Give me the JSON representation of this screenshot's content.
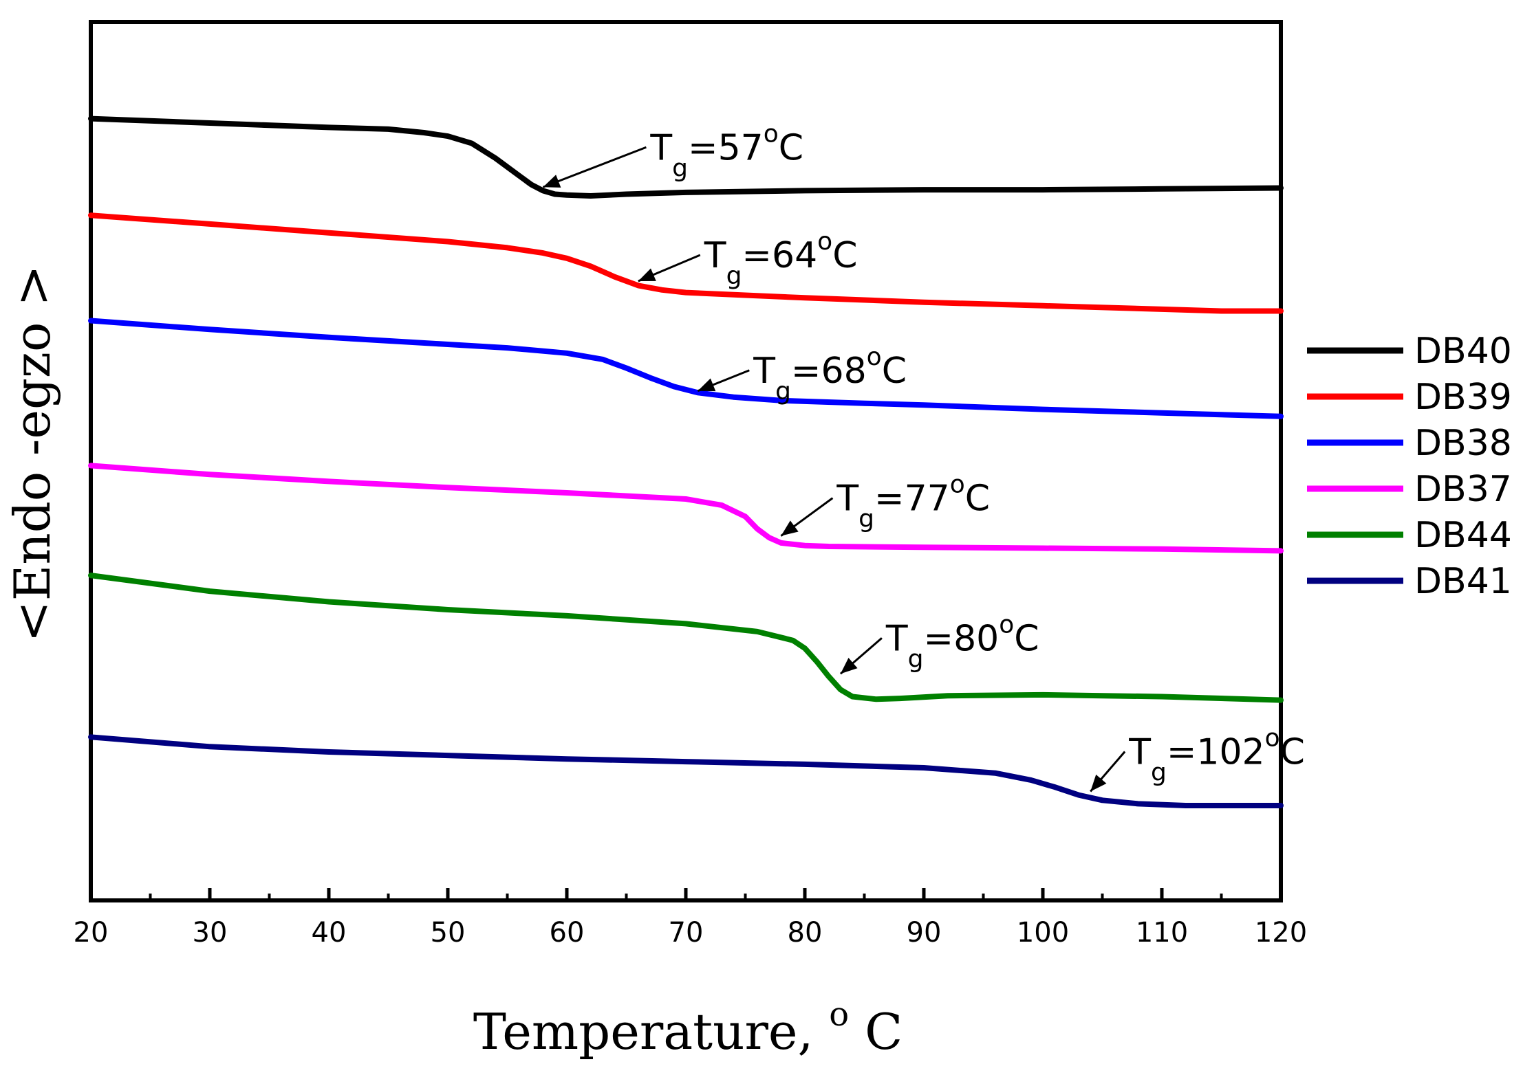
{
  "chart_data": {
    "type": "line",
    "xlabel": "Temperature,",
    "xlabel_unit_sup": "o",
    "xlabel_unit": "C",
    "ylabel": "<Endo -egzo >",
    "xlim": [
      20,
      120
    ],
    "x_ticks": [
      20,
      30,
      40,
      50,
      60,
      70,
      80,
      90,
      100,
      110,
      120
    ],
    "y_ticks_shown": false,
    "legend_position": "right",
    "series": [
      {
        "name": "DB40",
        "color": "#000000",
        "x": [
          20,
          30,
          40,
          45,
          48,
          50,
          52,
          54,
          56,
          57,
          58,
          59,
          60,
          62,
          65,
          70,
          80,
          90,
          100,
          110,
          120
        ],
        "y": [
          8.9,
          8.85,
          8.8,
          8.78,
          8.74,
          8.7,
          8.62,
          8.45,
          8.25,
          8.15,
          8.08,
          8.04,
          8.03,
          8.02,
          8.04,
          8.06,
          8.08,
          8.09,
          8.09,
          8.1,
          8.11
        ]
      },
      {
        "name": "DB39",
        "color": "#ff0000",
        "x": [
          20,
          30,
          40,
          50,
          55,
          58,
          60,
          62,
          64,
          66,
          68,
          70,
          75,
          80,
          90,
          100,
          110,
          115,
          120
        ],
        "y": [
          7.8,
          7.7,
          7.6,
          7.5,
          7.43,
          7.37,
          7.31,
          7.22,
          7.1,
          7.0,
          6.95,
          6.92,
          6.89,
          6.86,
          6.81,
          6.77,
          6.73,
          6.71,
          6.71
        ]
      },
      {
        "name": "DB38",
        "color": "#0000ff",
        "x": [
          20,
          30,
          40,
          50,
          55,
          60,
          63,
          65,
          67,
          69,
          71,
          74,
          78,
          85,
          90,
          100,
          110,
          120
        ],
        "y": [
          6.6,
          6.5,
          6.41,
          6.33,
          6.29,
          6.23,
          6.16,
          6.06,
          5.95,
          5.85,
          5.78,
          5.73,
          5.69,
          5.66,
          5.64,
          5.59,
          5.55,
          5.51
        ]
      },
      {
        "name": "DB37",
        "color": "#ff00ff",
        "x": [
          20,
          30,
          40,
          50,
          60,
          70,
          73,
          75,
          76,
          77,
          78,
          80,
          82,
          90,
          100,
          110,
          120
        ],
        "y": [
          4.95,
          4.85,
          4.77,
          4.7,
          4.64,
          4.57,
          4.5,
          4.37,
          4.23,
          4.13,
          4.07,
          4.04,
          4.03,
          4.02,
          4.01,
          4.0,
          3.98
        ]
      },
      {
        "name": "DB44",
        "color": "#008000",
        "x": [
          20,
          30,
          40,
          50,
          60,
          70,
          76,
          79,
          80,
          81,
          82,
          83,
          84,
          86,
          88,
          92,
          100,
          110,
          120
        ],
        "y": [
          3.7,
          3.52,
          3.4,
          3.31,
          3.24,
          3.15,
          3.06,
          2.96,
          2.87,
          2.72,
          2.55,
          2.4,
          2.32,
          2.29,
          2.3,
          2.33,
          2.34,
          2.32,
          2.28
        ]
      },
      {
        "name": "DB41",
        "color": "#000080",
        "x": [
          20,
          30,
          40,
          50,
          60,
          70,
          80,
          90,
          96,
          99,
          101,
          103,
          105,
          108,
          112,
          120
        ],
        "y": [
          1.86,
          1.75,
          1.69,
          1.65,
          1.61,
          1.58,
          1.55,
          1.51,
          1.45,
          1.37,
          1.29,
          1.2,
          1.14,
          1.1,
          1.08,
          1.08
        ]
      }
    ],
    "annotations": [
      {
        "series": "DB40",
        "text_main": "T",
        "text_sub": "g",
        "text_rest": "=57",
        "text_sup": "o",
        "text_end": "C",
        "arrow_to": [
          58,
          8.12
        ]
      },
      {
        "series": "DB39",
        "text_main": "T",
        "text_sub": "g",
        "text_rest": "=64",
        "text_sup": "o",
        "text_end": "C",
        "arrow_to": [
          66,
          7.05
        ]
      },
      {
        "series": "DB38",
        "text_main": "T",
        "text_sub": "g",
        "text_rest": "=68",
        "text_sup": "o",
        "text_end": "C",
        "arrow_to": [
          71,
          5.8
        ]
      },
      {
        "series": "DB37",
        "text_main": "T",
        "text_sub": "g",
        "text_rest": "=77",
        "text_sup": "o",
        "text_end": "C",
        "arrow_to": [
          78,
          4.15
        ]
      },
      {
        "series": "DB44",
        "text_main": "T",
        "text_sub": "g",
        "text_rest": "=80",
        "text_sup": "o",
        "text_end": "C",
        "arrow_to": [
          83,
          2.58
        ]
      },
      {
        "series": "DB41",
        "text_main": "T",
        "text_sub": "g",
        "text_rest": "=102",
        "text_sup": "o",
        "text_end": "C",
        "arrow_to": [
          104,
          1.24
        ]
      }
    ]
  }
}
